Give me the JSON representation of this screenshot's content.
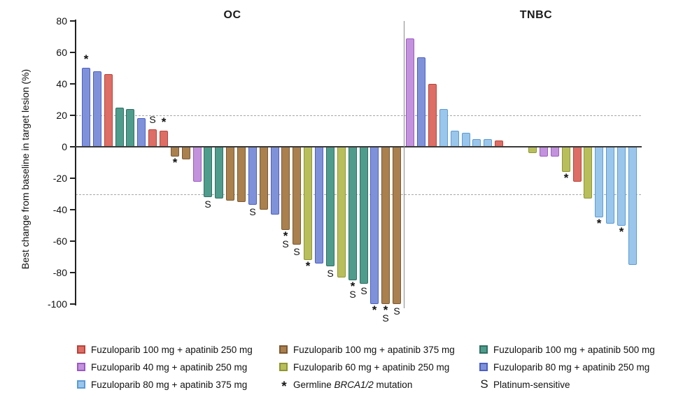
{
  "figure_title": "",
  "chart_data": {
    "type": "bar",
    "variant": "waterfall",
    "ylabel": "Best change from baseline in target lesion (%)",
    "ylim": [
      -100,
      80
    ],
    "yticks": [
      80,
      60,
      40,
      20,
      0,
      -20,
      -40,
      -60,
      -80,
      -100
    ],
    "reference_lines": [
      20,
      -30
    ],
    "grid": "off",
    "legend_position": "bottom",
    "flag_meanings": {
      "*": "Germline BRCA1/2 mutation",
      "S": "Platinum-sensitive"
    },
    "groups": {
      "f100a250": {
        "label": "Fuzuloparib 100 mg + apatinib 250 mg",
        "fill": "#DC6E66",
        "border": "#BA423A"
      },
      "f40a250": {
        "label": "Fuzuloparib 40 mg + apatinib 250 mg",
        "fill": "#C392DC",
        "border": "#9C59C8"
      },
      "f80a375": {
        "label": "Fuzuloparib 80 mg + apatinib 375 mg",
        "fill": "#9AC6EC",
        "border": "#5B9BD5"
      },
      "f100a375": {
        "label": "Fuzuloparib 100 mg + apatinib 375 mg",
        "fill": "#A9804E",
        "border": "#7C5830"
      },
      "f60a250": {
        "label": "Fuzuloparib 60 mg + apatinib 250 mg",
        "fill": "#B9BE5C",
        "border": "#8F9630"
      },
      "f100a500": {
        "label": "Fuzuloparib 100 mg + apatinib 500 mg",
        "fill": "#4F9C8C",
        "border": "#2F7064"
      },
      "f80a250": {
        "label": "Fuzuloparib 80 mg + apatinib 250 mg",
        "fill": "#7F92D9",
        "border": "#4C5FC6"
      }
    },
    "panels": [
      {
        "title": "OC",
        "bars": [
          {
            "value": 50,
            "group": "f80a250",
            "flags": [
              "*"
            ]
          },
          {
            "value": 48,
            "group": "f80a250"
          },
          {
            "value": 46,
            "group": "f100a250"
          },
          {
            "value": 25,
            "group": "f100a500"
          },
          {
            "value": 24,
            "group": "f100a500"
          },
          {
            "value": 18,
            "group": "f80a250"
          },
          {
            "value": 11,
            "group": "f100a250",
            "flags": [
              "S"
            ]
          },
          {
            "value": 10,
            "group": "f100a250",
            "flags": [
              "*"
            ]
          },
          {
            "value": -6,
            "group": "f100a375",
            "flags": [
              "*"
            ]
          },
          {
            "value": -8,
            "group": "f100a375"
          },
          {
            "value": -22,
            "group": "f40a250"
          },
          {
            "value": -32,
            "group": "f100a500",
            "flags": [
              "S"
            ]
          },
          {
            "value": -33,
            "group": "f100a500"
          },
          {
            "value": -34,
            "group": "f100a375"
          },
          {
            "value": -35,
            "group": "f100a375"
          },
          {
            "value": -37,
            "group": "f80a250",
            "flags": [
              "S"
            ]
          },
          {
            "value": -40,
            "group": "f100a375"
          },
          {
            "value": -43,
            "group": "f80a250"
          },
          {
            "value": -53,
            "group": "f100a375",
            "flags": [
              "*",
              "S"
            ]
          },
          {
            "value": -62,
            "group": "f100a375",
            "flags": [
              "S"
            ]
          },
          {
            "value": -72,
            "group": "f60a250",
            "flags": [
              "*"
            ]
          },
          {
            "value": -74,
            "group": "f80a250"
          },
          {
            "value": -76,
            "group": "f100a500",
            "flags": [
              "S"
            ]
          },
          {
            "value": -83,
            "group": "f60a250"
          },
          {
            "value": -85,
            "group": "f100a500",
            "flags": [
              "*",
              "S"
            ]
          },
          {
            "value": -87,
            "group": "f100a500",
            "flags": [
              "S"
            ]
          },
          {
            "value": -100,
            "group": "f80a250",
            "flags": [
              "*"
            ]
          },
          {
            "value": -100,
            "group": "f100a375",
            "flags": [
              "*",
              "S"
            ]
          },
          {
            "value": -100,
            "group": "f100a375",
            "flags": [
              "S"
            ]
          }
        ]
      },
      {
        "title": "TNBC",
        "bars": [
          {
            "value": 69,
            "group": "f40a250"
          },
          {
            "value": 57,
            "group": "f80a250"
          },
          {
            "value": 40,
            "group": "f100a250"
          },
          {
            "value": 24,
            "group": "f80a375"
          },
          {
            "value": 10,
            "group": "f80a375"
          },
          {
            "value": 9,
            "group": "f80a375"
          },
          {
            "value": 5,
            "group": "f80a375"
          },
          {
            "value": 5,
            "group": "f80a375"
          },
          {
            "value": 4,
            "group": "f100a250"
          },
          {
            "value": -4,
            "group": "f60a250",
            "gap_before": 2
          },
          {
            "value": -6,
            "group": "f40a250"
          },
          {
            "value": -6,
            "group": "f40a250"
          },
          {
            "value": -16,
            "group": "f60a250",
            "flags": [
              "*"
            ]
          },
          {
            "value": -22,
            "group": "f100a250"
          },
          {
            "value": -33,
            "group": "f60a250"
          },
          {
            "value": -45,
            "group": "f80a375",
            "flags": [
              "*"
            ]
          },
          {
            "value": -49,
            "group": "f80a375"
          },
          {
            "value": -50,
            "group": "f80a375",
            "flags": [
              "*"
            ]
          },
          {
            "value": -75,
            "group": "f80a375"
          }
        ]
      }
    ]
  },
  "legend": {
    "columns": [
      {
        "items": [
          {
            "type": "swatch",
            "group": "f100a250"
          },
          {
            "type": "swatch",
            "group": "f40a250"
          },
          {
            "type": "swatch",
            "group": "f80a375"
          }
        ]
      },
      {
        "items": [
          {
            "type": "swatch",
            "group": "f100a375"
          },
          {
            "type": "swatch",
            "group": "f60a250"
          },
          {
            "type": "symbol",
            "symbol": "*",
            "label_prefix": "Germline ",
            "label_italic": "BRCA1/2",
            "label_suffix": " mutation"
          }
        ]
      },
      {
        "items": [
          {
            "type": "swatch",
            "group": "f100a500"
          },
          {
            "type": "swatch",
            "group": "f80a250"
          },
          {
            "type": "symbol",
            "symbol": "S",
            "label_prefix": "Platinum-sensitive",
            "label_italic": "",
            "label_suffix": ""
          }
        ]
      }
    ]
  }
}
